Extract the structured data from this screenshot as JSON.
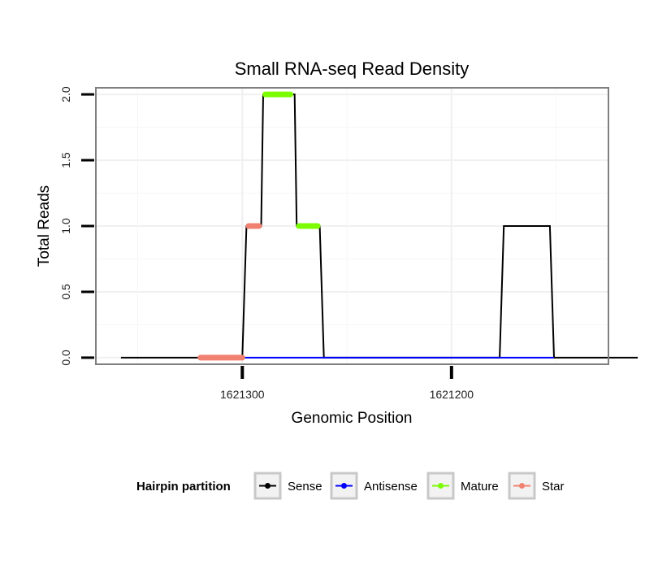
{
  "chart_data": {
    "type": "line",
    "title": "Small RNA-seq Read Density",
    "xlabel": "Genomic Position",
    "ylabel": "Total Reads",
    "x_reversed": true,
    "xlim": [
      1621370,
      1621125
    ],
    "ylim": [
      -0.05,
      2.05
    ],
    "x_ticks": [
      1621300,
      1621200
    ],
    "x_tick_labels": [
      "1621300",
      "1621200"
    ],
    "y_ticks": [
      0,
      0.5,
      1,
      1.5,
      2
    ],
    "y_tick_labels": [
      "0.0",
      "0.5",
      "1.0",
      "1.5",
      "2.0"
    ],
    "grid": true,
    "legend": {
      "title": "Hairpin partition",
      "position": "bottom",
      "entries": [
        {
          "label": "Sense",
          "color": "#000000"
        },
        {
          "label": "Antisense",
          "color": "#0000ff"
        },
        {
          "label": "Mature",
          "color": "#7cfc00"
        },
        {
          "label": "Star",
          "color": "#f08070"
        }
      ]
    },
    "series": [
      {
        "name": "Sense",
        "color": "#000000",
        "x": [
          1621358,
          1621300,
          1621298,
          1621291,
          1621290,
          1621275,
          1621274,
          1621263,
          1621261,
          1621177,
          1621175,
          1621153,
          1621151,
          1621111
        ],
        "y": [
          0,
          0,
          1,
          1,
          2,
          2,
          1,
          1,
          0,
          0,
          1,
          1,
          0,
          0
        ]
      },
      {
        "name": "Antisense",
        "color": "#0000ff",
        "x": [
          1621300,
          1621261,
          1621177,
          1621151
        ],
        "y": [
          0,
          0,
          0,
          0
        ]
      },
      {
        "name": "Mature",
        "color": "#7cfc00",
        "segments": [
          {
            "x": [
              1621289,
              1621277
            ],
            "y": 2
          },
          {
            "x": [
              1621273,
              1621264
            ],
            "y": 1
          }
        ]
      },
      {
        "name": "Star",
        "color": "#f08070",
        "segments": [
          {
            "x": [
              1621297,
              1621292
            ],
            "y": 1
          },
          {
            "x": [
              1621320,
              1621300
            ],
            "y": 0
          }
        ]
      }
    ]
  }
}
